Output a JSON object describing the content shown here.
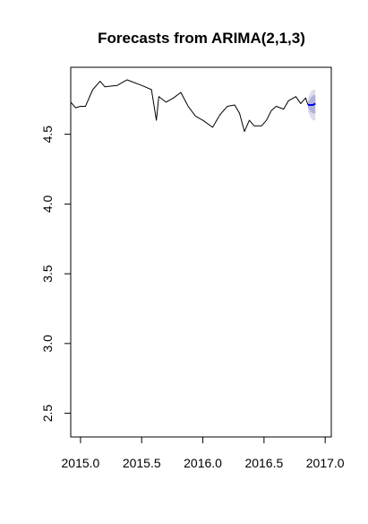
{
  "chart_data": {
    "type": "line",
    "title": "Forecasts from ARIMA(2,1,3)",
    "xlabel": "",
    "ylabel": "",
    "xlim": [
      2014.92,
      2017.05
    ],
    "ylim": [
      2.33,
      4.98
    ],
    "x_ticks": [
      {
        "value": 2015.0,
        "label": "2015.0"
      },
      {
        "value": 2015.5,
        "label": "2015.5"
      },
      {
        "value": 2016.0,
        "label": "2016.0"
      },
      {
        "value": 2016.5,
        "label": "2016.5"
      },
      {
        "value": 2017.0,
        "label": "2017.0"
      }
    ],
    "y_ticks": [
      {
        "value": 2.5,
        "label": "2.5"
      },
      {
        "value": 3.0,
        "label": "3.0"
      },
      {
        "value": 3.5,
        "label": "3.5"
      },
      {
        "value": 4.0,
        "label": "4.0"
      },
      {
        "value": 4.5,
        "label": "4.5"
      }
    ],
    "series": [
      {
        "role": "observed",
        "color": "#000000",
        "points": [
          [
            2014.92,
            4.73
          ],
          [
            2014.96,
            4.69
          ],
          [
            2015.0,
            4.7
          ],
          [
            2015.04,
            4.7
          ],
          [
            2015.1,
            4.82
          ],
          [
            2015.16,
            4.88
          ],
          [
            2015.2,
            4.84
          ],
          [
            2015.3,
            4.85
          ],
          [
            2015.38,
            4.89
          ],
          [
            2015.5,
            4.85
          ],
          [
            2015.58,
            4.82
          ],
          [
            2015.62,
            4.6
          ],
          [
            2015.64,
            4.77
          ],
          [
            2015.7,
            4.73
          ],
          [
            2015.76,
            4.76
          ],
          [
            2015.82,
            4.8
          ],
          [
            2015.88,
            4.7
          ],
          [
            2015.94,
            4.63
          ],
          [
            2016.0,
            4.6
          ],
          [
            2016.08,
            4.55
          ],
          [
            2016.14,
            4.64
          ],
          [
            2016.2,
            4.7
          ],
          [
            2016.26,
            4.71
          ],
          [
            2016.3,
            4.65
          ],
          [
            2016.34,
            4.52
          ],
          [
            2016.38,
            4.6
          ],
          [
            2016.42,
            4.56
          ],
          [
            2016.48,
            4.56
          ],
          [
            2016.52,
            4.6
          ],
          [
            2016.56,
            4.67
          ],
          [
            2016.6,
            4.7
          ],
          [
            2016.66,
            4.68
          ],
          [
            2016.7,
            4.74
          ],
          [
            2016.76,
            4.77
          ],
          [
            2016.8,
            4.72
          ],
          [
            2016.84,
            4.76
          ],
          [
            2016.86,
            4.71
          ]
        ]
      },
      {
        "role": "forecast",
        "color": "#0000ff",
        "points": [
          [
            2016.86,
            4.71
          ],
          [
            2016.88,
            4.71
          ],
          [
            2016.9,
            4.71
          ],
          [
            2016.92,
            4.72
          ]
        ]
      }
    ],
    "intervals": [
      {
        "level": "95%",
        "color": "#dcdcea",
        "x": [
          2016.86,
          2016.88,
          2016.9,
          2016.92
        ],
        "lower": [
          4.66,
          4.62,
          4.6,
          4.6
        ],
        "upper": [
          4.76,
          4.8,
          4.82,
          4.82
        ]
      },
      {
        "level": "80%",
        "color": "#b3b3d9",
        "x": [
          2016.86,
          2016.88,
          2016.9,
          2016.92
        ],
        "lower": [
          4.69,
          4.66,
          4.65,
          4.65
        ],
        "upper": [
          4.73,
          4.76,
          4.78,
          4.78
        ]
      }
    ],
    "grid": false,
    "legend": "none",
    "colors": {
      "observed": "#000000",
      "forecast": "#0000ff",
      "ci95": "#dcdcea",
      "ci80": "#b3b3d9"
    }
  }
}
